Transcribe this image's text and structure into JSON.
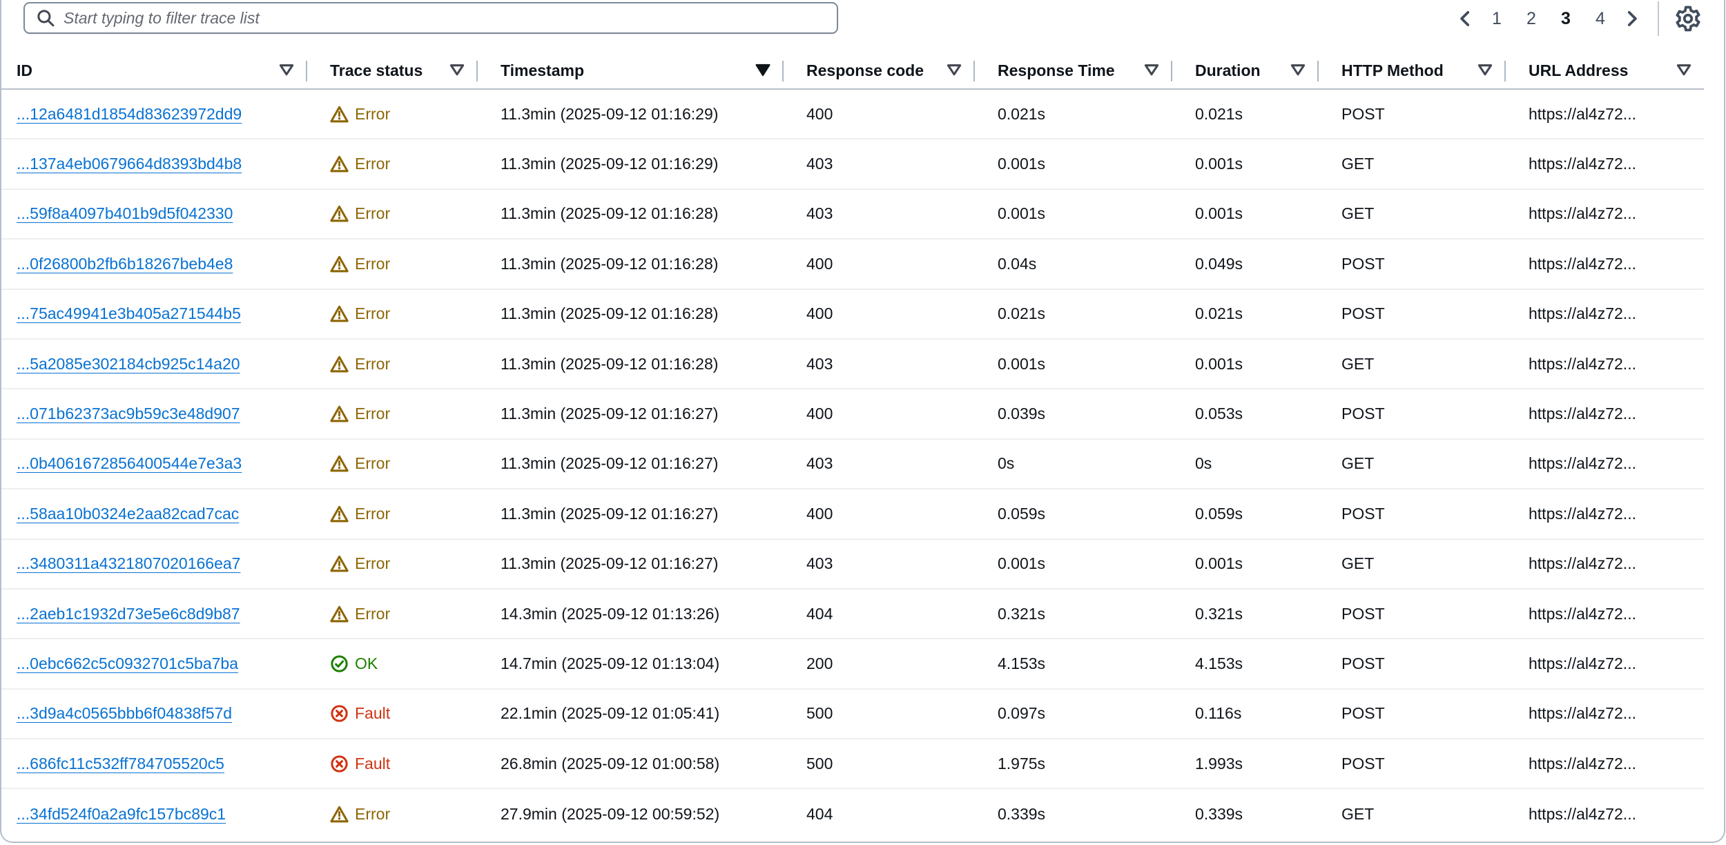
{
  "toolbar": {
    "search": {
      "placeholder": "Start typing to filter trace list",
      "value": ""
    },
    "pagination": {
      "prev_icon": "chevron-left-icon",
      "next_icon": "chevron-right-icon",
      "pages": [
        "1",
        "2",
        "3",
        "4"
      ],
      "current_page": "3"
    },
    "settings_icon": "gear-icon"
  },
  "table": {
    "columns": [
      {
        "label": "ID",
        "filter_icon": "filter-dropdown-icon",
        "filter_active": false
      },
      {
        "label": "Trace status",
        "filter_icon": "filter-dropdown-icon",
        "filter_active": false
      },
      {
        "label": "Timestamp",
        "filter_icon": "filter-dropdown-icon",
        "filter_active": true
      },
      {
        "label": "Response code",
        "filter_icon": "filter-dropdown-icon",
        "filter_active": false
      },
      {
        "label": "Response Time",
        "filter_icon": "filter-dropdown-icon",
        "filter_active": false
      },
      {
        "label": "Duration",
        "filter_icon": "filter-dropdown-icon",
        "filter_active": false
      },
      {
        "label": "HTTP Method",
        "filter_icon": "filter-dropdown-icon",
        "filter_active": false
      },
      {
        "label": "URL Address",
        "filter_icon": "filter-dropdown-icon",
        "filter_active": false
      }
    ],
    "rows": [
      {
        "id": "...12a6481d1854d83623972dd9",
        "status": "Error",
        "status_type": "error",
        "status_icon": "warning-triangle-icon",
        "timestamp": "11.3min (2025-09-12 01:16:29)",
        "response_code": "400",
        "response_time": "0.021s",
        "duration": "0.021s",
        "http_method": "POST",
        "url": "https://al4z72..."
      },
      {
        "id": "...137a4eb0679664d8393bd4b8",
        "status": "Error",
        "status_type": "error",
        "status_icon": "warning-triangle-icon",
        "timestamp": "11.3min (2025-09-12 01:16:29)",
        "response_code": "403",
        "response_time": "0.001s",
        "duration": "0.001s",
        "http_method": "GET",
        "url": "https://al4z72..."
      },
      {
        "id": "...59f8a4097b401b9d5f042330",
        "status": "Error",
        "status_type": "error",
        "status_icon": "warning-triangle-icon",
        "timestamp": "11.3min (2025-09-12 01:16:28)",
        "response_code": "403",
        "response_time": "0.001s",
        "duration": "0.001s",
        "http_method": "GET",
        "url": "https://al4z72..."
      },
      {
        "id": "...0f26800b2fb6b18267beb4e8",
        "status": "Error",
        "status_type": "error",
        "status_icon": "warning-triangle-icon",
        "timestamp": "11.3min (2025-09-12 01:16:28)",
        "response_code": "400",
        "response_time": "0.04s",
        "duration": "0.049s",
        "http_method": "POST",
        "url": "https://al4z72..."
      },
      {
        "id": "...75ac49941e3b405a271544b5",
        "status": "Error",
        "status_type": "error",
        "status_icon": "warning-triangle-icon",
        "timestamp": "11.3min (2025-09-12 01:16:28)",
        "response_code": "400",
        "response_time": "0.021s",
        "duration": "0.021s",
        "http_method": "POST",
        "url": "https://al4z72..."
      },
      {
        "id": "...5a2085e302184cb925c14a20",
        "status": "Error",
        "status_type": "error",
        "status_icon": "warning-triangle-icon",
        "timestamp": "11.3min (2025-09-12 01:16:28)",
        "response_code": "403",
        "response_time": "0.001s",
        "duration": "0.001s",
        "http_method": "GET",
        "url": "https://al4z72..."
      },
      {
        "id": "...071b62373ac9b59c3e48d907",
        "status": "Error",
        "status_type": "error",
        "status_icon": "warning-triangle-icon",
        "timestamp": "11.3min (2025-09-12 01:16:27)",
        "response_code": "400",
        "response_time": "0.039s",
        "duration": "0.053s",
        "http_method": "POST",
        "url": "https://al4z72..."
      },
      {
        "id": "...0b4061672856400544e7e3a3",
        "status": "Error",
        "status_type": "error",
        "status_icon": "warning-triangle-icon",
        "timestamp": "11.3min (2025-09-12 01:16:27)",
        "response_code": "403",
        "response_time": "0s",
        "duration": "0s",
        "http_method": "GET",
        "url": "https://al4z72..."
      },
      {
        "id": "...58aa10b0324e2aa82cad7cac",
        "status": "Error",
        "status_type": "error",
        "status_icon": "warning-triangle-icon",
        "timestamp": "11.3min (2025-09-12 01:16:27)",
        "response_code": "400",
        "response_time": "0.059s",
        "duration": "0.059s",
        "http_method": "POST",
        "url": "https://al4z72..."
      },
      {
        "id": "...3480311a4321807020166ea7",
        "status": "Error",
        "status_type": "error",
        "status_icon": "warning-triangle-icon",
        "timestamp": "11.3min (2025-09-12 01:16:27)",
        "response_code": "403",
        "response_time": "0.001s",
        "duration": "0.001s",
        "http_method": "GET",
        "url": "https://al4z72..."
      },
      {
        "id": "...2aeb1c1932d73e5e6c8d9b87",
        "status": "Error",
        "status_type": "error",
        "status_icon": "warning-triangle-icon",
        "timestamp": "14.3min (2025-09-12 01:13:26)",
        "response_code": "404",
        "response_time": "0.321s",
        "duration": "0.321s",
        "http_method": "POST",
        "url": "https://al4z72..."
      },
      {
        "id": "...0ebc662c5c0932701c5ba7ba",
        "status": "OK",
        "status_type": "ok",
        "status_icon": "success-check-circle-icon",
        "timestamp": "14.7min (2025-09-12 01:13:04)",
        "response_code": "200",
        "response_time": "4.153s",
        "duration": "4.153s",
        "http_method": "POST",
        "url": "https://al4z72..."
      },
      {
        "id": "...3d9a4c0565bbb6f04838f57d",
        "status": "Fault",
        "status_type": "fault",
        "status_icon": "fault-x-circle-icon",
        "timestamp": "22.1min (2025-09-12 01:05:41)",
        "response_code": "500",
        "response_time": "0.097s",
        "duration": "0.116s",
        "http_method": "POST",
        "url": "https://al4z72..."
      },
      {
        "id": "...686fc11c532ff784705520c5",
        "status": "Fault",
        "status_type": "fault",
        "status_icon": "fault-x-circle-icon",
        "timestamp": "26.8min (2025-09-12 01:00:58)",
        "response_code": "500",
        "response_time": "1.975s",
        "duration": "1.993s",
        "http_method": "POST",
        "url": "https://al4z72..."
      },
      {
        "id": "...34fd524f0a2a9fc157bc89c1",
        "status": "Error",
        "status_type": "error",
        "status_icon": "warning-triangle-icon",
        "timestamp": "27.9min (2025-09-12 00:59:52)",
        "response_code": "404",
        "response_time": "0.339s",
        "duration": "0.339s",
        "http_method": "GET",
        "url": "https://al4z72..."
      }
    ]
  },
  "colors": {
    "link": "#0972d3",
    "warning": "#8d6605",
    "success": "#1d8102",
    "fault": "#d13212",
    "header_text": "#0f141a",
    "row_divider": "#eceef1",
    "container_border": "#b6bec9"
  }
}
